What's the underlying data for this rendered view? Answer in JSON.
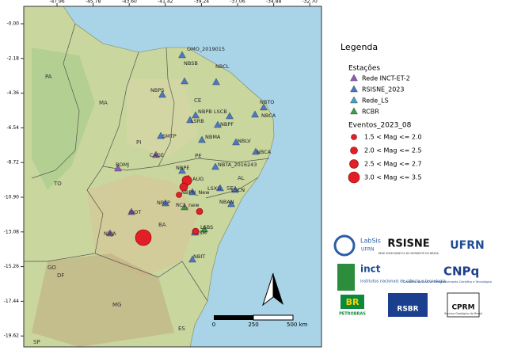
{
  "map": {
    "lon_ticks": [
      -47.96,
      -45.78,
      {
        "value": -43.6,
        "label": "-43.60"
      },
      -41.42,
      -39.24,
      -37.06,
      -34.88,
      {
        "value": -32.7,
        "label": "-32.70"
      }
    ],
    "lat_ticks": [
      {
        "value": 0,
        "label": "-0.00"
      },
      -2.18,
      -4.36,
      -6.54,
      -8.72,
      {
        "value": -10.9,
        "label": "-10.90"
      },
      -13.08,
      -15.26,
      -17.44,
      -19.62
    ],
    "states": [
      "PA",
      "MA",
      "PI",
      "TO",
      "GO",
      "DF",
      "MG",
      "ES",
      "SP",
      "CE",
      "BA",
      "AL",
      "SE",
      "PE"
    ],
    "stations": [
      "OMO_2019015",
      "NBSB",
      "NBPS",
      "NBCL",
      "NBTO",
      "NBPB",
      "LSCB",
      "NBCA",
      "LSRB",
      "NBPF",
      "SMTP",
      "NBMA",
      "NBLV",
      "CAGE",
      "NBCA",
      "BOMJ",
      "NBPE",
      "NBTA_2016243",
      "AUG",
      "LSXG",
      "NBPN_New",
      "LSCN",
      "NBLP",
      "RC1_new",
      "NBAN",
      "IBOT",
      "LSBS",
      "NBJA",
      "NBSM",
      "NBIT"
    ],
    "scale_bar": [
      "0",
      "250",
      "500 km"
    ]
  },
  "legend": {
    "title": "Legenda",
    "stations_title": "Estações",
    "stations": [
      "Rede INCT-ET-2",
      "RSISNE_2023",
      "Rede_LS",
      "RCBR"
    ],
    "events_title": "Eventos_2023_08",
    "events": [
      "1.5 <  Mag <= 2.0",
      "2.0 <  Mag <= 2.5",
      "2.5 <  Mag <= 2.7",
      "3.0 <  Mag <= 3.5"
    ]
  },
  "logos": {
    "labsis": "LabSis",
    "labsis_sub": "UFRN",
    "rsisne": "RSISNE",
    "rsisne_sub": "REDE SISMOGRÁFICA DO NORDESTE DO BRASIL",
    "ufrn": "UFRN",
    "inct": "inct",
    "inct_sub": "institutos nacionais de ciência e tecnologia",
    "cnpq": "CNPq",
    "cnpq_sub": "Conselho Nacional de Desenvolvimento Científico e Tecnológico",
    "br": "BR",
    "petrobras": "PETROBRAS",
    "rsbr": "RSBR",
    "cprm": "CPRM",
    "cprm_sub": "Serviço Geológico do Brasil"
  }
}
